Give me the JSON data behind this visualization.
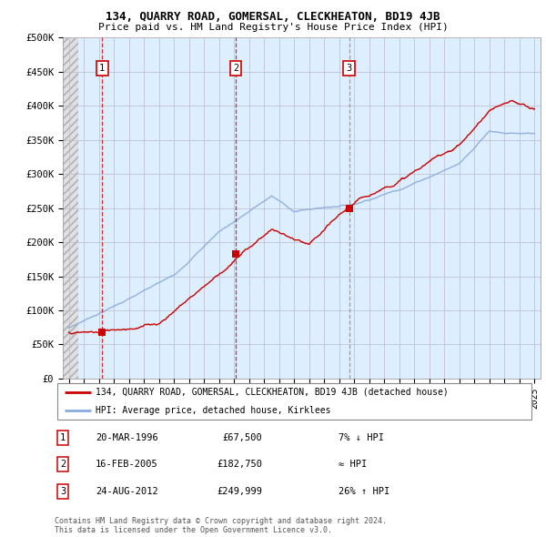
{
  "title": "134, QUARRY ROAD, GOMERSAL, CLECKHEATON, BD19 4JB",
  "subtitle": "Price paid vs. HM Land Registry's House Price Index (HPI)",
  "xlim_left": 1993.6,
  "xlim_right": 2025.4,
  "ylim_bottom": 0,
  "ylim_top": 500000,
  "yticks": [
    0,
    50000,
    100000,
    150000,
    200000,
    250000,
    300000,
    350000,
    400000,
    450000,
    500000
  ],
  "ytick_labels": [
    "£0",
    "£50K",
    "£100K",
    "£150K",
    "£200K",
    "£250K",
    "£300K",
    "£350K",
    "£400K",
    "£450K",
    "£500K"
  ],
  "xticks": [
    1994,
    1995,
    1996,
    1997,
    1998,
    1999,
    2000,
    2001,
    2002,
    2003,
    2004,
    2005,
    2006,
    2007,
    2008,
    2009,
    2010,
    2011,
    2012,
    2013,
    2014,
    2015,
    2016,
    2017,
    2018,
    2019,
    2020,
    2021,
    2022,
    2023,
    2024,
    2025
  ],
  "sale_years": [
    1996.22,
    2005.12,
    2012.65
  ],
  "sale_prices": [
    67500,
    182750,
    249999
  ],
  "sale_labels": [
    "1",
    "2",
    "3"
  ],
  "vline_colors": [
    "#cc0000",
    "#cc0000",
    "#888888"
  ],
  "vline_styles": [
    "--",
    "--",
    "--"
  ],
  "legend_red_label": "134, QUARRY ROAD, GOMERSAL, CLECKHEATON, BD19 4JB (detached house)",
  "legend_blue_label": "HPI: Average price, detached house, Kirklees",
  "table_data": [
    [
      "1",
      "20-MAR-1996",
      "£67,500",
      "7% ↓ HPI"
    ],
    [
      "2",
      "16-FEB-2005",
      "£182,750",
      "≈ HPI"
    ],
    [
      "3",
      "24-AUG-2012",
      "£249,999",
      "26% ↑ HPI"
    ]
  ],
  "footer": "Contains HM Land Registry data © Crown copyright and database right 2024.\nThis data is licensed under the Open Government Licence v3.0.",
  "plot_bg_color": "#ddeeff",
  "hatch_bg_color": "#e0e0e0",
  "grid_color": "#bbbbcc",
  "red_color": "#cc0000",
  "blue_color": "#88aadd"
}
